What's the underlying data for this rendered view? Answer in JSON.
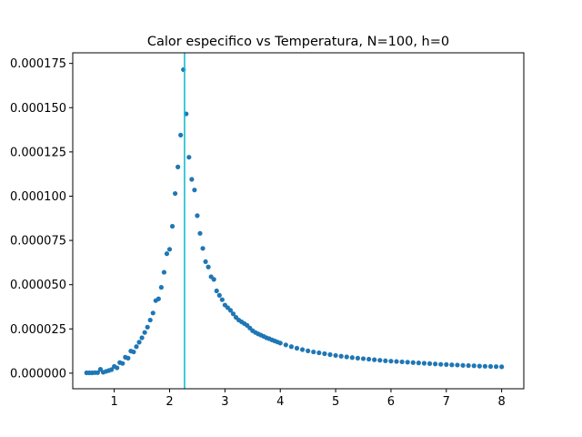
{
  "chart_data": {
    "type": "scatter",
    "title": "Calor especifico vs Temperatura, N=100, h=0",
    "xlabel": "",
    "ylabel": "",
    "xlim": [
      0.25,
      8.4
    ],
    "ylim": [
      -8.8e-06,
      0.000181
    ],
    "xticks": [
      1,
      2,
      3,
      4,
      5,
      6,
      7,
      8
    ],
    "xtick_labels": [
      "1",
      "2",
      "3",
      "4",
      "5",
      "6",
      "7",
      "8"
    ],
    "yticks": [
      0,
      2.5e-05,
      5e-05,
      7.5e-05,
      0.0001,
      0.000125,
      0.00015,
      0.000175
    ],
    "ytick_labels": [
      "0.000000",
      "0.000025",
      "0.000050",
      "0.000075",
      "0.000100",
      "0.000125",
      "0.000150",
      "0.000175"
    ],
    "grid": false,
    "colors": {
      "points": "#1f77b4",
      "vline": "#17becf",
      "axes": "#000000",
      "background": "#ffffff"
    },
    "series": [
      {
        "marker": "point",
        "x": [
          0.5,
          0.55,
          0.6,
          0.65,
          0.7,
          0.75,
          0.8,
          0.85,
          0.9,
          0.95,
          1.0,
          1.05,
          1.1,
          1.15,
          1.2,
          1.25,
          1.3,
          1.35,
          1.4,
          1.45,
          1.5,
          1.55,
          1.6,
          1.65,
          1.7,
          1.75,
          1.8,
          1.85,
          1.9,
          1.95,
          2.0,
          2.05,
          2.1,
          2.15,
          2.2,
          2.25,
          2.3,
          2.35,
          2.4,
          2.45,
          2.5,
          2.55,
          2.6,
          2.65,
          2.7,
          2.75,
          2.8,
          2.85,
          2.9,
          2.95,
          3.0,
          3.05,
          3.1,
          3.15,
          3.2,
          3.25,
          3.3,
          3.35,
          3.4,
          3.45,
          3.5,
          3.55,
          3.6,
          3.65,
          3.7,
          3.75,
          3.8,
          3.85,
          3.9,
          3.95,
          4.0,
          4.1,
          4.2,
          4.3,
          4.4,
          4.5,
          4.6,
          4.7,
          4.8,
          4.9,
          5.0,
          5.1,
          5.2,
          5.3,
          5.4,
          5.5,
          5.6,
          5.7,
          5.8,
          5.9,
          6.0,
          6.1,
          6.2,
          6.3,
          6.4,
          6.5,
          6.6,
          6.7,
          6.8,
          6.9,
          7.0,
          7.1,
          7.2,
          7.3,
          7.4,
          7.5,
          7.6,
          7.7,
          7.8,
          7.9,
          8.0
        ],
        "y": [
          2e-07,
          2e-07,
          2e-07,
          3e-07,
          3e-07,
          2.2e-06,
          5e-07,
          1e-06,
          1.5e-06,
          2e-06,
          3.8e-06,
          3e-06,
          6e-06,
          5.5e-06,
          9e-06,
          8.5e-06,
          1.25e-05,
          1.2e-05,
          1.5e-05,
          1.75e-05,
          2e-05,
          2.3e-05,
          2.6e-05,
          3e-05,
          3.4e-05,
          4.1e-05,
          4.2e-05,
          4.85e-05,
          5.7e-05,
          6.75e-05,
          7e-05,
          8.3e-05,
          0.0001015,
          0.0001165,
          0.0001345,
          0.0001715,
          0.0001465,
          0.000122,
          0.0001095,
          0.0001035,
          8.9e-05,
          7.9e-05,
          7.05e-05,
          6.3e-05,
          6e-05,
          5.45e-05,
          5.3e-05,
          4.65e-05,
          4.4e-05,
          4.15e-05,
          3.85e-05,
          3.7e-05,
          3.55e-05,
          3.35e-05,
          3.15e-05,
          3e-05,
          2.9e-05,
          2.8e-05,
          2.7e-05,
          2.55e-05,
          2.4e-05,
          2.3e-05,
          2.22e-05,
          2.15e-05,
          2.08e-05,
          2e-05,
          1.95e-05,
          1.88e-05,
          1.82e-05,
          1.76e-05,
          1.7e-05,
          1.6e-05,
          1.5e-05,
          1.41e-05,
          1.33e-05,
          1.26e-05,
          1.2e-05,
          1.15e-05,
          1.1e-05,
          1.05e-05,
          1e-05,
          9.6e-06,
          9.2e-06,
          8.8e-06,
          8.5e-06,
          8.2e-06,
          7.9e-06,
          7.6e-06,
          7.3e-06,
          7e-06,
          6.8e-06,
          6.6e-06,
          6.4e-06,
          6.2e-06,
          6e-06,
          5.8e-06,
          5.6e-06,
          5.4e-06,
          5.2e-06,
          5e-06,
          4.9e-06,
          4.7e-06,
          4.6e-06,
          4.4e-06,
          4.3e-06,
          4.2e-06,
          4e-06,
          3.9e-06,
          3.8e-06,
          3.7e-06,
          3.6e-06
        ]
      }
    ],
    "vline": {
      "x": 2.27
    }
  }
}
